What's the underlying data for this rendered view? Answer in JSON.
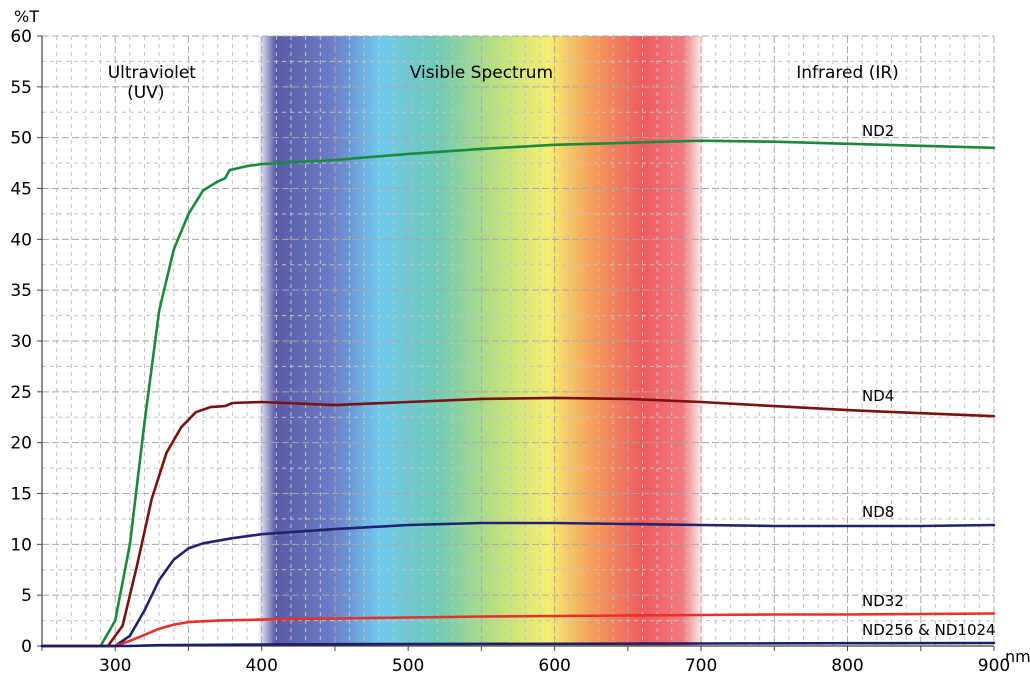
{
  "chart_data": {
    "type": "line",
    "title": "",
    "ylabel": "%T",
    "xlabel": "nm",
    "xlim": [
      250,
      900
    ],
    "ylim": [
      0,
      60
    ],
    "x_ticks": [
      300,
      400,
      500,
      600,
      700,
      800,
      900
    ],
    "y_ticks": [
      0,
      5,
      10,
      15,
      20,
      25,
      30,
      35,
      40,
      45,
      50,
      55,
      60
    ],
    "grid": true,
    "spectrum_band": [
      400,
      700
    ],
    "regions": [
      {
        "id": "uv",
        "label": "Ultraviolet",
        "sublabel": "(UV)",
        "x": 325
      },
      {
        "id": "visible",
        "label": "Visible  Spectrum",
        "x": 550
      },
      {
        "id": "ir",
        "label": "Infrared (IR)",
        "x": 800
      }
    ],
    "series": [
      {
        "name": "ND2",
        "color": "#1a8a3c",
        "points": [
          [
            250,
            0
          ],
          [
            290,
            0
          ],
          [
            300,
            2.5
          ],
          [
            310,
            10
          ],
          [
            320,
            22
          ],
          [
            330,
            33
          ],
          [
            340,
            39
          ],
          [
            350,
            42.5
          ],
          [
            360,
            44.8
          ],
          [
            370,
            45.7
          ],
          [
            375,
            46
          ],
          [
            378,
            46.8
          ],
          [
            390,
            47.2
          ],
          [
            400,
            47.4
          ],
          [
            450,
            47.8
          ],
          [
            500,
            48.4
          ],
          [
            550,
            48.9
          ],
          [
            600,
            49.3
          ],
          [
            650,
            49.5
          ],
          [
            700,
            49.7
          ],
          [
            750,
            49.6
          ],
          [
            800,
            49.4
          ],
          [
            850,
            49.2
          ],
          [
            900,
            49
          ]
        ]
      },
      {
        "name": "ND4",
        "color": "#7a1212",
        "points": [
          [
            250,
            0
          ],
          [
            295,
            0
          ],
          [
            305,
            2
          ],
          [
            315,
            8
          ],
          [
            325,
            14.5
          ],
          [
            335,
            19
          ],
          [
            345,
            21.5
          ],
          [
            355,
            23
          ],
          [
            365,
            23.5
          ],
          [
            375,
            23.6
          ],
          [
            380,
            23.9
          ],
          [
            400,
            24
          ],
          [
            450,
            23.7
          ],
          [
            500,
            24
          ],
          [
            550,
            24.3
          ],
          [
            600,
            24.4
          ],
          [
            650,
            24.3
          ],
          [
            700,
            24
          ],
          [
            750,
            23.6
          ],
          [
            800,
            23.2
          ],
          [
            850,
            22.9
          ],
          [
            900,
            22.6
          ]
        ]
      },
      {
        "name": "ND8",
        "color": "#22226e",
        "points": [
          [
            250,
            0
          ],
          [
            300,
            0
          ],
          [
            310,
            1
          ],
          [
            320,
            3.5
          ],
          [
            330,
            6.5
          ],
          [
            340,
            8.5
          ],
          [
            350,
            9.6
          ],
          [
            360,
            10.1
          ],
          [
            380,
            10.6
          ],
          [
            400,
            11
          ],
          [
            450,
            11.5
          ],
          [
            500,
            11.9
          ],
          [
            550,
            12.1
          ],
          [
            600,
            12.1
          ],
          [
            650,
            12
          ],
          [
            700,
            11.9
          ],
          [
            750,
            11.8
          ],
          [
            800,
            11.8
          ],
          [
            850,
            11.8
          ],
          [
            900,
            11.9
          ]
        ]
      },
      {
        "name": "ND32",
        "color": "#e8302a",
        "points": [
          [
            250,
            0
          ],
          [
            300,
            0
          ],
          [
            310,
            0.5
          ],
          [
            320,
            1.1
          ],
          [
            330,
            1.7
          ],
          [
            340,
            2.1
          ],
          [
            350,
            2.35
          ],
          [
            370,
            2.5
          ],
          [
            400,
            2.6
          ],
          [
            450,
            2.7
          ],
          [
            500,
            2.8
          ],
          [
            550,
            2.9
          ],
          [
            600,
            2.95
          ],
          [
            650,
            3
          ],
          [
            700,
            3.05
          ],
          [
            750,
            3.1
          ],
          [
            800,
            3.1
          ],
          [
            850,
            3.15
          ],
          [
            900,
            3.2
          ]
        ]
      },
      {
        "name": "ND256 & ND1024",
        "color": "#1c1c6a",
        "points": [
          [
            250,
            0
          ],
          [
            310,
            0
          ],
          [
            330,
            0.08
          ],
          [
            400,
            0.15
          ],
          [
            500,
            0.2
          ],
          [
            600,
            0.22
          ],
          [
            700,
            0.25
          ],
          [
            800,
            0.28
          ],
          [
            900,
            0.3
          ]
        ]
      }
    ]
  }
}
